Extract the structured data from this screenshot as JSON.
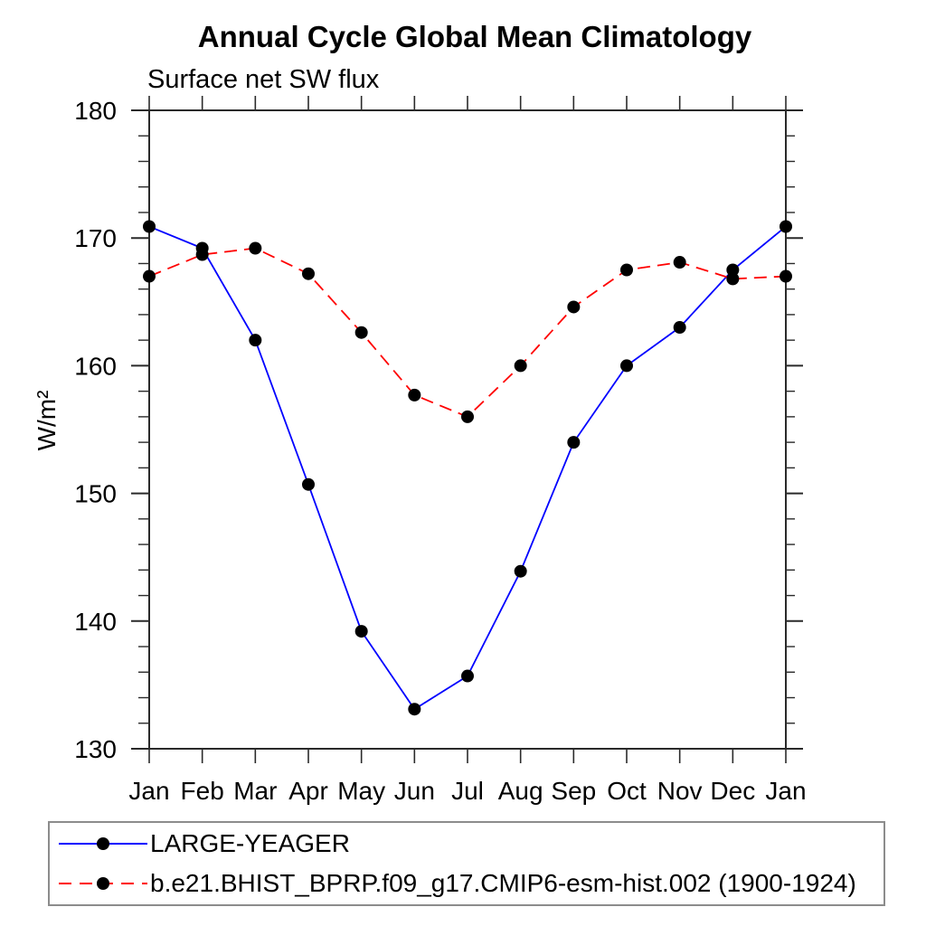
{
  "chart_data": {
    "type": "line",
    "title": "Annual Cycle Global Mean Climatology",
    "subtitle": "Surface net SW flux",
    "ylabel": "W/m²",
    "xlabel": "",
    "categories": [
      "Jan",
      "Feb",
      "Mar",
      "Apr",
      "May",
      "Jun",
      "Jul",
      "Aug",
      "Sep",
      "Oct",
      "Nov",
      "Dec",
      "Jan"
    ],
    "ylim": [
      130,
      180
    ],
    "y_major_ticks": [
      130,
      140,
      150,
      160,
      170,
      180
    ],
    "y_minor_step": 2,
    "grid": false,
    "frame": "full-box",
    "tick_direction": "out",
    "axis_color": "#2a2a2a",
    "legend_position": "bottom-left-box",
    "series": [
      {
        "name": "LARGE-YEAGER",
        "line_style": "solid",
        "color": "#0000ff",
        "marker": "filled-circle",
        "marker_color": "#000000",
        "values": [
          170.9,
          169.2,
          162.0,
          150.7,
          139.2,
          133.1,
          135.7,
          143.9,
          154.0,
          160.0,
          163.0,
          167.5,
          170.9
        ]
      },
      {
        "name": "b.e21.BHIST_BPRP.f09_g17.CMIP6-esm-hist.002 (1900-1924)",
        "line_style": "dashed",
        "color": "#ff0000",
        "marker": "filled-circle",
        "marker_color": "#000000",
        "values": [
          167.0,
          168.7,
          169.2,
          167.2,
          162.6,
          157.7,
          156.0,
          160.0,
          164.6,
          167.5,
          168.1,
          166.8,
          167.0
        ]
      }
    ]
  }
}
